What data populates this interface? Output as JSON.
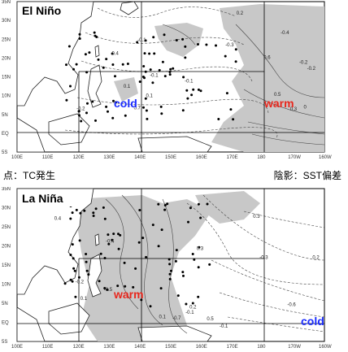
{
  "legend": {
    "left": "点：TC発生",
    "right": "陰影：SST偏差"
  },
  "y_ticks": [
    "35N",
    "30N",
    "25N",
    "20N",
    "15N",
    "10N",
    "5N",
    "EQ",
    "5S"
  ],
  "x_ticks": [
    "100E",
    "110E",
    "120E",
    "130E",
    "140E",
    "150E",
    "160E",
    "170E",
    "180",
    "170W",
    "160W"
  ],
  "panels": [
    {
      "title": "El Niño",
      "labels": [
        {
          "text": "cold",
          "color": "#1a2cff"
        },
        {
          "text": "warm",
          "color": "#e8281e"
        }
      ],
      "contour_labels": [
        "-0.1",
        "-0.2",
        "-0.3",
        "-0.2",
        "-0.1",
        "0",
        "0.1",
        "0.2",
        "0.3",
        "-0.4",
        "0.4",
        "0.5",
        "0.6",
        "0.7",
        "-0.2",
        "-0.1",
        "0.1"
      ]
    },
    {
      "title": "La Niña",
      "labels": [
        {
          "text": "warm",
          "color": "#e8281e"
        },
        {
          "text": "cold",
          "color": "#1a2cff"
        }
      ],
      "contour_labels": [
        "0.1",
        "0.2",
        "0.3",
        "0.4",
        "0.2",
        "0.1",
        "-0.1",
        "-0.2",
        "-0.3",
        "-0.4",
        "-0.5",
        "-0.6",
        "-0.7",
        "-0.1",
        "0.3",
        "0.5"
      ]
    }
  ],
  "colors": {
    "shade": "#c8c8c8",
    "land": "#ffffff",
    "coast": "#222222",
    "contour": "#444444",
    "box": "#000000"
  }
}
